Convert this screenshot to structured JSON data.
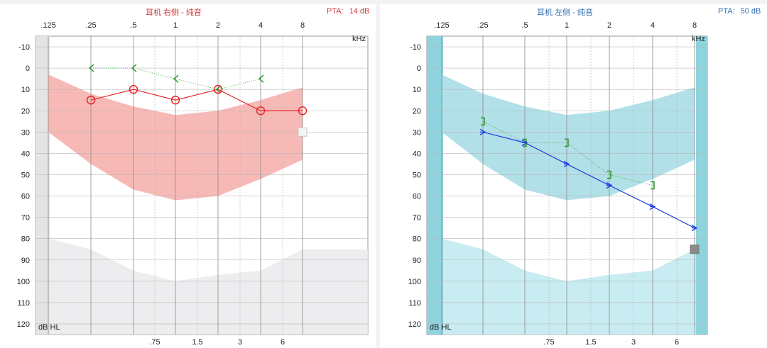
{
  "chart_data": [
    {
      "type": "line",
      "title": "耳机 右侧 - 纯音",
      "pta_label": "PTA:",
      "pta_value": "14 dB",
      "x_ticks_top": [
        ".125",
        ".25",
        ".5",
        "1",
        "2",
        "4",
        "8"
      ],
      "x_ticks_bottom": [
        ".75",
        "1.5",
        "3",
        "6"
      ],
      "x_unit": "kHz",
      "y_ticks": [
        "-10",
        "0",
        "10",
        "20",
        "30",
        "40",
        "50",
        "60",
        "70",
        "80",
        "90",
        "100",
        "110",
        "120"
      ],
      "y_unit": "dB HL",
      "ylim": [
        -15,
        125
      ],
      "colors": {
        "air": "#e8272a",
        "bone": "#2a9a2a",
        "band": "#f6b1ae",
        "shade": "#e9e9ec",
        "grid": "#b8b8b8",
        "edge_strip": "#e4e4e6"
      },
      "series": [
        {
          "symbol": "circle",
          "x": [
            0.25,
            0.5,
            1,
            2,
            4,
            8
          ],
          "values": [
            15,
            10,
            15,
            10,
            20,
            20
          ]
        },
        {
          "symbol": "bracket-left",
          "x": [
            0.25,
            0.5,
            1,
            2,
            4
          ],
          "values": [
            0,
            0,
            5,
            10,
            5
          ]
        }
      ],
      "nr_marker": {
        "x": 8,
        "value": 30
      }
    },
    {
      "type": "line",
      "title": "耳机 左侧 - 纯音",
      "pta_label": "PTA:",
      "pta_value": "50 dB",
      "x_ticks_top": [
        ".125",
        ".25",
        ".5",
        "1",
        "2",
        "4",
        "8"
      ],
      "x_ticks_bottom": [
        ".75",
        "1.5",
        "3",
        "6"
      ],
      "x_unit": "kHz",
      "y_ticks": [
        "-10",
        "0",
        "10",
        "20",
        "30",
        "40",
        "50",
        "60",
        "70",
        "80",
        "90",
        "100",
        "110",
        "120"
      ],
      "y_unit": "dB HL",
      "ylim": [
        -15,
        125
      ],
      "colors": {
        "air": "#1f3fe0",
        "bone": "#2a9a2a",
        "band": "#a9dde6",
        "shade": "#c8ecf2",
        "grid": "#b8b8b8",
        "edge_strip": "#8fd3df"
      },
      "series": [
        {
          "symbol": "x-right",
          "x": [
            0.25,
            0.5,
            1,
            2,
            4,
            8
          ],
          "values": [
            30,
            35,
            45,
            55,
            65,
            75
          ]
        },
        {
          "symbol": "bracket-right",
          "x": [
            0.25,
            0.5,
            1,
            2,
            4
          ],
          "values": [
            25,
            35,
            35,
            50,
            55
          ]
        }
      ],
      "nr_marker": {
        "x": 8,
        "value": 85
      }
    }
  ]
}
